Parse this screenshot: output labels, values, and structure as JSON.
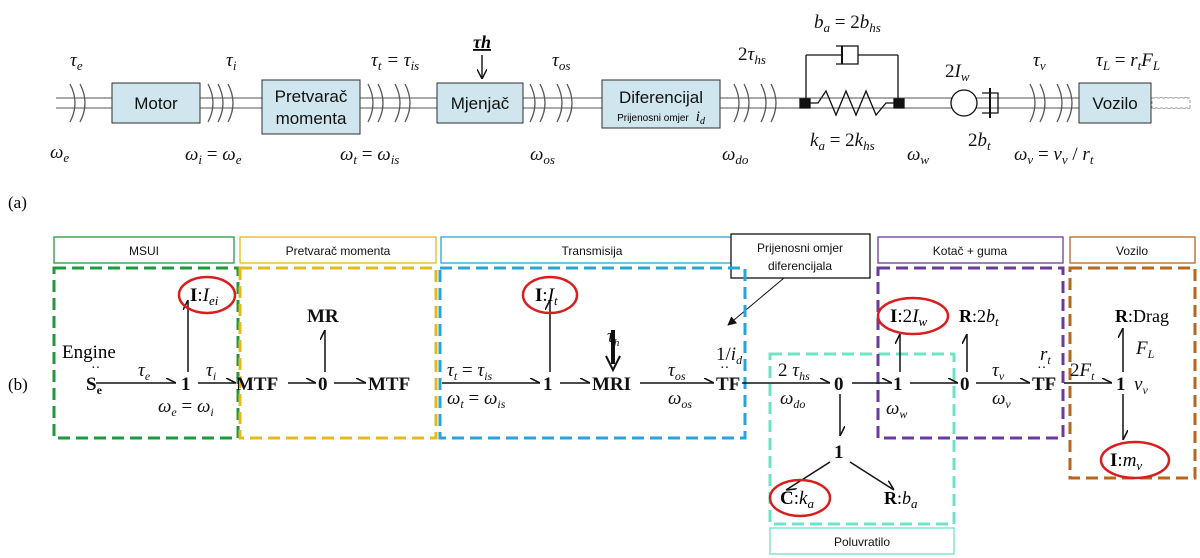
{
  "panel_labels": {
    "a": "(a)",
    "b": "(b)"
  },
  "top": {
    "blocks": {
      "motor": "Motor",
      "converter_l1": "Pretvarač",
      "converter_l2": "momenta",
      "gearbox": "Mjenjač",
      "differential": "Diferencijal",
      "differential_sub": "Prijenosni omjer",
      "differential_sub_var": "i",
      "differential_sub_sub": "d",
      "vehicle": "Vozilo"
    },
    "torques": {
      "tau_e": "τe",
      "tau_i": "τi",
      "tau_t": "τt = τis",
      "tau_h": "τh",
      "tau_os": "τos",
      "tau_hs": "2τhs",
      "tau_v": "τv",
      "tau_L": "τL = rtFL"
    },
    "speeds": {
      "w_e": "ωe",
      "w_i": "ωi = ωe",
      "w_t": "ωt = ωis",
      "w_os": "ωos",
      "w_do": "ωdo",
      "w_w": "ωw",
      "w_v": "ωv = vv / rt"
    },
    "shaft": {
      "b_a": "ba = 2bhs",
      "k_a": "ka = 2khs",
      "I_w": "2Iw",
      "b_t": "2bt"
    }
  },
  "bottom": {
    "groups": {
      "msui": "MSUI",
      "converter": "Pretvarač momenta",
      "transmission": "Transmisija",
      "diff_ratio_l1": "Prijenosni omjer",
      "diff_ratio_l2": "diferencijala",
      "wheel": "Kotač + guma",
      "vehicle": "Vozilo",
      "halfshaft": "Poluvratilo"
    },
    "elements": {
      "engine": "Engine",
      "se": "Se",
      "one_msui": "1",
      "i_ei": "I:Iei",
      "mtf1": "MTF",
      "zero_conv": "0",
      "mr": "MR",
      "mtf2": "MTF",
      "one_trans": "1",
      "i_t": "I:It",
      "mri": "MRI",
      "tf1": "TF",
      "tf1_ratio": "1/id",
      "zero_shaft": "0",
      "one_shaft": "1",
      "c_ka": "C:ka",
      "r_ba": "R:ba",
      "one_wheel": "1",
      "i_2iw": "I:2Iw",
      "zero_wheel": "0",
      "r_2bt": "R:2bt",
      "tf2": "TF",
      "tf2_ratio": "rt",
      "one_vehicle": "1",
      "r_drag": "R:Drag",
      "i_mv": "I:mv"
    },
    "signals": {
      "tau_e": "τe",
      "tau_i": "τi",
      "w_eq": "ωe = ωi",
      "tau_t_eq": "τt = τis",
      "w_t_eq": "ωt = ωis",
      "tau_h": "τh",
      "tau_os": "τos",
      "w_os": "ωos",
      "tau_hs2": "2 τhs",
      "w_do": "ωdo",
      "w_w": "ωw",
      "tau_v": "τv",
      "w_v": "ωv",
      "f_t2": "2Ft",
      "f_L": "FL",
      "v_v": "vv"
    }
  },
  "colors": {
    "msui": "#1e9a3e",
    "converter": "#e6b820",
    "transmission": "#2aa4d6",
    "halfshaft": "#6fe3c6",
    "wheel": "#6a3b9c",
    "vehicle": "#b8661e",
    "highlight": "#d81e1e",
    "block_fill": "#cfe6ee"
  }
}
